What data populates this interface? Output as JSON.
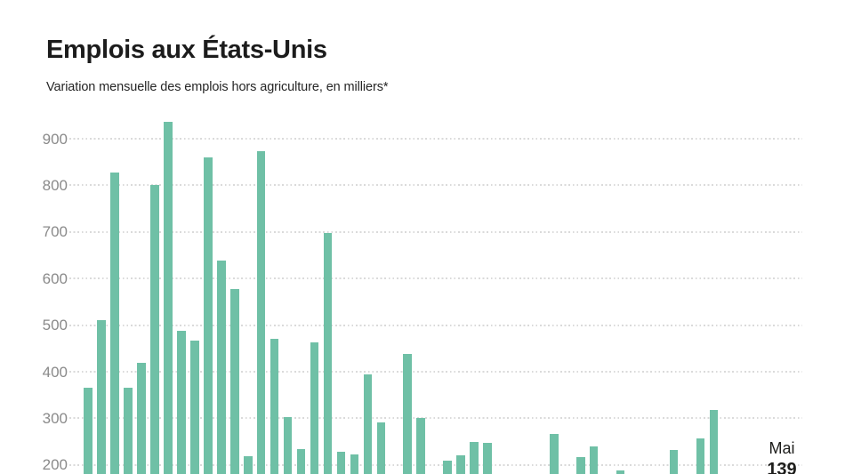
{
  "header": {
    "title": "Emplois aux États-Unis",
    "subtitle": "Variation mensuelle des emplois hors agriculture, en milliers*"
  },
  "colors": {
    "background": "#ffffff",
    "bar": "#6fc0a6",
    "title_text": "#1c1c1c",
    "subtitle_text": "#262626",
    "axis_tick_text": "#8a8a8a",
    "gridline": "#dadada",
    "annotation_text": "#1d1d1b"
  },
  "chart_data": {
    "type": "bar",
    "title": "Emplois aux États-Unis",
    "subtitle": "Variation mensuelle des emplois hors agriculture, en milliers*",
    "ylabel": "Variation mensuelle des emplois hors agriculture, en milliers",
    "xlabel": "",
    "yticks": [
      900,
      800,
      700,
      600,
      500,
      400,
      300,
      200
    ],
    "ylim_visible": [
      180,
      960
    ],
    "grid": "horizontal-dotted",
    "legend": "none",
    "values_note": "monthly bars left to right; null = bar too small to appear in the cropped visible area (below ~180)",
    "values": [
      365,
      510,
      828,
      366,
      420,
      800,
      936,
      487,
      466,
      860,
      638,
      577,
      219,
      873,
      470,
      303,
      234,
      463,
      698,
      229,
      223,
      395,
      291,
      null,
      438,
      300,
      null,
      210,
      220,
      250,
      247,
      null,
      null,
      null,
      null,
      266,
      null,
      217,
      240,
      null,
      188,
      null,
      null,
      null,
      233,
      null,
      257,
      318,
      null,
      null,
      null,
      null,
      139
    ],
    "last_point": {
      "label": "Mai",
      "value": 139
    }
  }
}
